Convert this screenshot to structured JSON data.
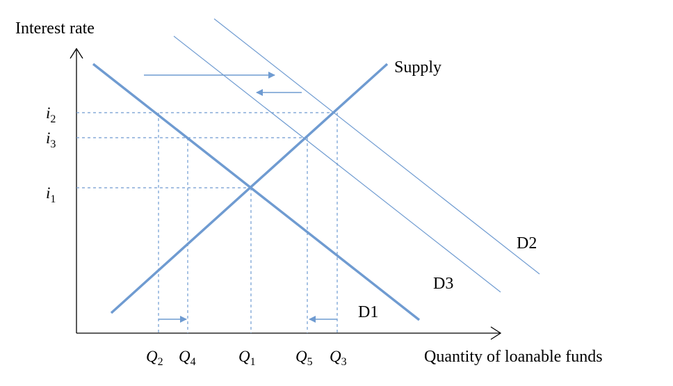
{
  "axes": {
    "y_label": "Interest rate",
    "x_label": "Quantity of loanable funds"
  },
  "curves": {
    "supply": "Supply",
    "d1": "D1",
    "d2": "D2",
    "d3": "D3"
  },
  "y_ticks": [
    {
      "base": "i",
      "sub": "2"
    },
    {
      "base": "i",
      "sub": "3"
    },
    {
      "base": "i",
      "sub": "1"
    }
  ],
  "x_ticks": [
    {
      "base": "Q",
      "sub": "2"
    },
    {
      "base": "Q",
      "sub": "4"
    },
    {
      "base": "Q",
      "sub": "1"
    },
    {
      "base": "Q",
      "sub": "5"
    },
    {
      "base": "Q",
      "sub": "3"
    }
  ],
  "colors": {
    "curve": "#6f9bd1",
    "axis": "#000000"
  }
}
